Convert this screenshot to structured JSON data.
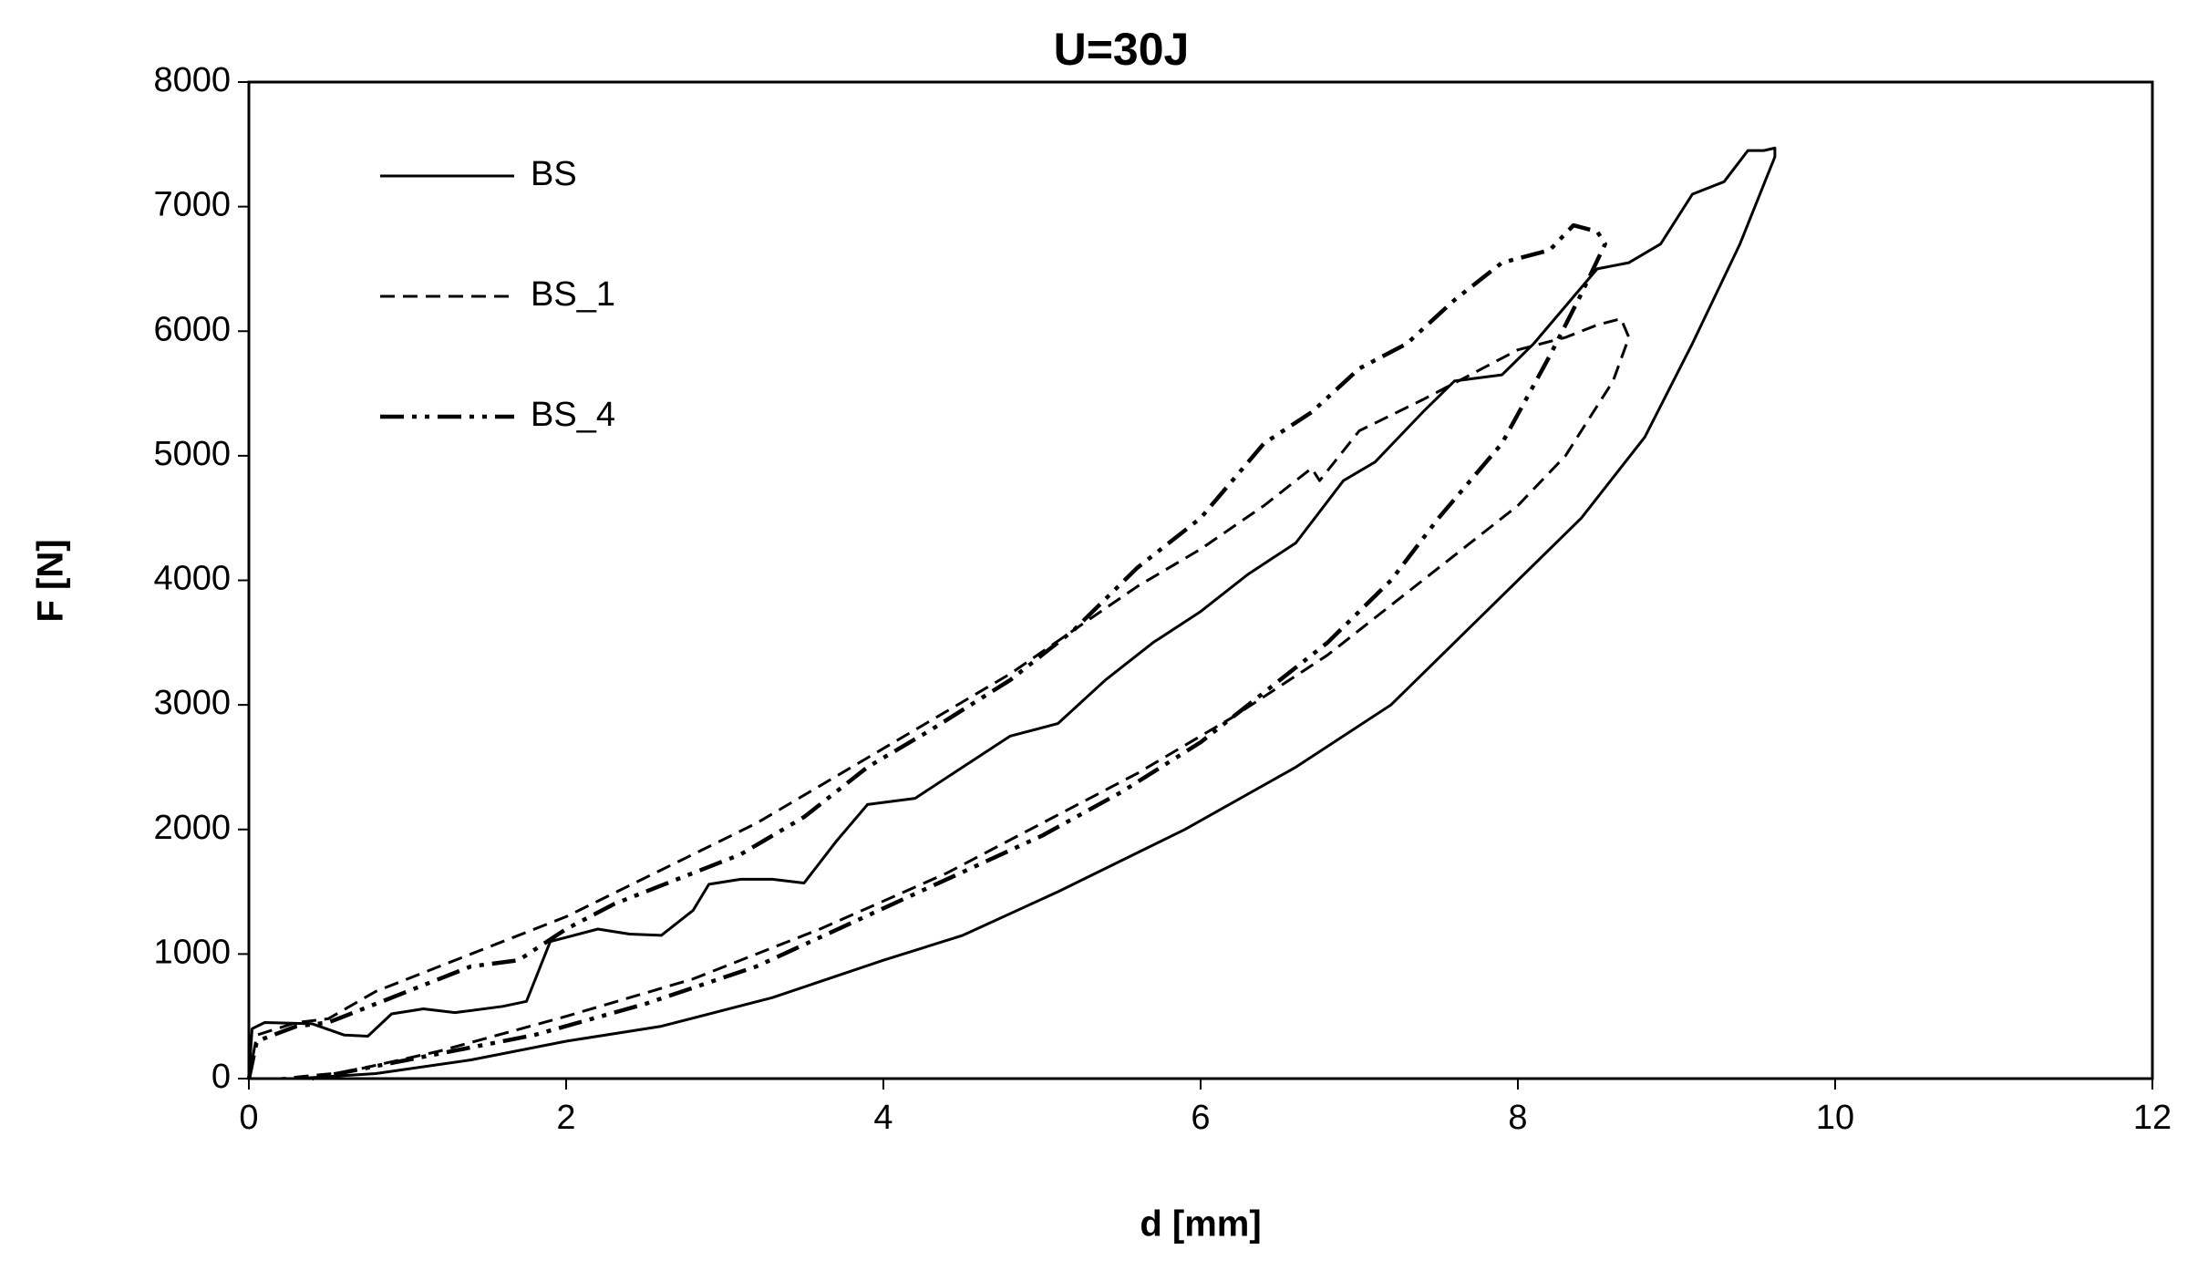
{
  "chart_data": {
    "type": "line",
    "title": "U=30J",
    "x_label": "d [mm]",
    "y_label": "F [N]",
    "xlim": [
      0,
      12
    ],
    "ylim": [
      0,
      8000
    ],
    "xticks": [
      0,
      2,
      4,
      6,
      8,
      10,
      12
    ],
    "yticks": [
      0,
      1000,
      2000,
      3000,
      4000,
      5000,
      6000,
      7000,
      8000
    ],
    "legend": "upper left",
    "series": [
      {
        "name": "BS",
        "color": "#000000",
        "dash": "solid",
        "x": [
          0,
          0.02,
          0.1,
          0.4,
          0.6,
          0.75,
          0.9,
          1.1,
          1.3,
          1.6,
          1.75,
          1.9,
          2.2,
          2.4,
          2.6,
          2.8,
          2.9,
          3.1,
          3.3,
          3.5,
          3.7,
          3.9,
          4.2,
          4.5,
          4.8,
          5.1,
          5.4,
          5.7,
          6.0,
          6.3,
          6.6,
          6.9,
          7.1,
          7.4,
          7.6,
          7.9,
          8.1,
          8.3,
          8.5,
          8.7,
          8.9,
          9.1,
          9.3,
          9.45,
          9.55,
          9.62,
          9.62,
          9.4,
          9.1,
          8.8,
          8.4,
          8.0,
          7.6,
          7.2,
          6.6,
          5.9,
          5.1,
          4.5,
          4.0,
          3.3,
          2.6,
          2.0,
          1.4,
          0.8,
          0.3
        ],
        "values": [
          0,
          400,
          450,
          440,
          350,
          340,
          520,
          560,
          530,
          580,
          620,
          1100,
          1200,
          1160,
          1150,
          1350,
          1560,
          1600,
          1600,
          1570,
          1900,
          2200,
          2250,
          2500,
          2750,
          2850,
          3200,
          3500,
          3750,
          4050,
          4300,
          4800,
          4950,
          5350,
          5600,
          5650,
          5900,
          6200,
          6500,
          6550,
          6700,
          7100,
          7200,
          7450,
          7450,
          7470,
          7400,
          6700,
          5900,
          5150,
          4500,
          4000,
          3500,
          3000,
          2500,
          2000,
          1500,
          1150,
          950,
          650,
          420,
          300,
          150,
          40,
          0
        ]
      },
      {
        "name": "BS_1",
        "color": "#000000",
        "dash": "dashed",
        "x": [
          0,
          0.05,
          0.3,
          0.5,
          0.8,
          1.2,
          1.6,
          2.0,
          2.4,
          2.8,
          3.2,
          3.6,
          4.0,
          4.4,
          4.8,
          5.2,
          5.6,
          6.0,
          6.4,
          6.7,
          6.75,
          7.0,
          7.4,
          7.7,
          8.0,
          8.3,
          8.5,
          8.65,
          8.7,
          8.6,
          8.3,
          8.0,
          7.6,
          7.2,
          6.8,
          6.2,
          5.6,
          5.0,
          4.4,
          3.6,
          2.8,
          2.0,
          1.2,
          0.6,
          0.2
        ],
        "values": [
          0,
          350,
          450,
          480,
          700,
          900,
          1100,
          1300,
          1550,
          1800,
          2050,
          2350,
          2650,
          2950,
          3250,
          3600,
          3950,
          4250,
          4600,
          4900,
          4800,
          5200,
          5450,
          5650,
          5850,
          5950,
          6050,
          6100,
          5950,
          5600,
          5000,
          4600,
          4200,
          3800,
          3400,
          2900,
          2450,
          2050,
          1650,
          1200,
          800,
          500,
          220,
          50,
          0
        ]
      },
      {
        "name": "BS_4",
        "color": "#000000",
        "dash": "dash-dot-dot",
        "x": [
          0,
          0.05,
          0.3,
          0.5,
          0.7,
          1.0,
          1.4,
          1.7,
          2.0,
          2.3,
          2.7,
          3.1,
          3.5,
          3.9,
          4.3,
          4.8,
          5.2,
          5.6,
          6.0,
          6.4,
          6.7,
          7.0,
          7.3,
          7.6,
          7.9,
          8.2,
          8.35,
          8.5,
          8.55,
          8.4,
          8.2,
          7.9,
          7.5,
          7.2,
          6.8,
          6.4,
          6.0,
          5.5,
          5.0,
          4.4,
          3.8,
          3.2,
          2.5,
          1.8,
          1.0,
          0.4
        ],
        "values": [
          0,
          300,
          420,
          450,
          550,
          700,
          900,
          950,
          1200,
          1400,
          1600,
          1800,
          2100,
          2500,
          2800,
          3200,
          3600,
          4100,
          4500,
          5100,
          5350,
          5700,
          5900,
          6250,
          6550,
          6650,
          6850,
          6800,
          6700,
          6300,
          5800,
          5100,
          4500,
          4000,
          3500,
          3100,
          2700,
          2300,
          1950,
          1600,
          1250,
          900,
          600,
          350,
          150,
          0
        ]
      }
    ]
  }
}
